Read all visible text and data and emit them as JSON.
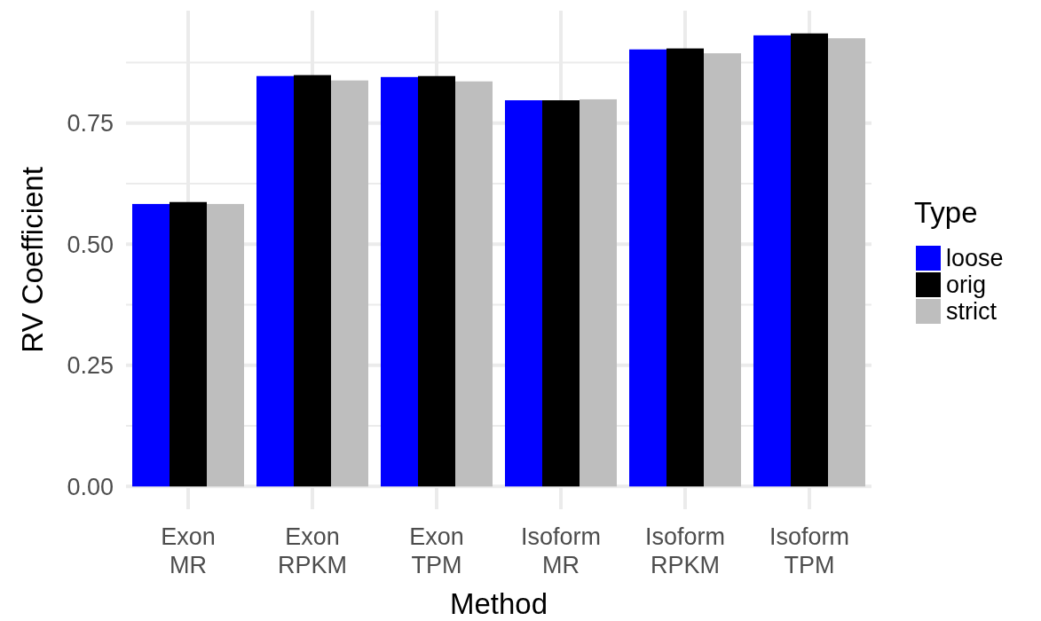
{
  "chart_data": {
    "type": "bar",
    "xlabel": "Method",
    "ylabel": "RV Coefficient",
    "legend_title": "Type",
    "categories": [
      "Exon\nMR",
      "Exon\nRPKM",
      "Exon\nTPM",
      "Isoform\nMR",
      "Isoform\nRPKM",
      "Isoform\nTPM"
    ],
    "series": [
      {
        "name": "loose",
        "color": "#0000ff",
        "values": [
          0.583,
          0.847,
          0.845,
          0.797,
          0.902,
          0.931
        ]
      },
      {
        "name": "orig",
        "color": "#000000",
        "values": [
          0.587,
          0.849,
          0.847,
          0.797,
          0.904,
          0.935
        ]
      },
      {
        "name": "strict",
        "color": "#bebebe",
        "values": [
          0.583,
          0.838,
          0.836,
          0.799,
          0.894,
          0.925
        ]
      }
    ],
    "ylim": [
      -0.047,
      0.982
    ],
    "yticks": [
      {
        "value": 0,
        "label": "0.00"
      },
      {
        "value": 0.25,
        "label": "0.25"
      },
      {
        "value": 0.5,
        "label": "0.50"
      },
      {
        "value": 0.75,
        "label": "0.75"
      }
    ],
    "grid": true,
    "legend": "right"
  }
}
